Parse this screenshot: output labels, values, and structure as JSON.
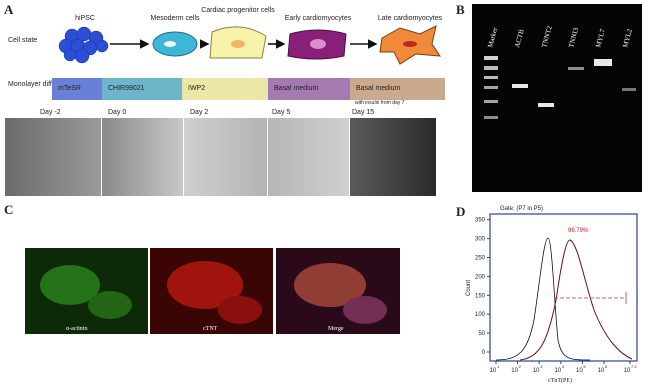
{
  "panel_a": {
    "label": "A",
    "row_cell_state": "Cell state",
    "row_differentiation": "Monolayer differentiation",
    "stages": [
      "hiPSC",
      "Mesoderm cells",
      "Cardiac progenitor cells",
      "Early cardiomyocytes",
      "Late cardiomyocytes"
    ],
    "media": [
      "mTeSR",
      "CHIR99021",
      "IWP2",
      "Basal medium",
      "Basal medium"
    ],
    "media_note": "with insulin from day 7",
    "days": [
      "Day -2",
      "Day 0",
      "Day 2",
      "Day 5",
      "Day 15"
    ]
  },
  "panel_b": {
    "label": "B",
    "lanes": [
      "Marker",
      "ACTB",
      "TNNT2",
      "TNNI3",
      "MYL7",
      "MYL2"
    ]
  },
  "panel_c": {
    "label": "C",
    "captions": [
      "α-actinin",
      "cTNT",
      "Merge"
    ]
  },
  "panel_d": {
    "label": "D",
    "gate": "Gate: (P7 in P5)",
    "percent": "96.79%",
    "y_label": "Count",
    "x_label": "cTnT(PE)",
    "yticks": [
      "0",
      "50",
      "100",
      "150",
      "200",
      "250",
      "300",
      "350"
    ],
    "xticks": [
      {
        "base": "10",
        "exp": "1"
      },
      {
        "base": "10",
        "exp": "2"
      },
      {
        "base": "10",
        "exp": "3"
      },
      {
        "base": "10",
        "exp": "4"
      },
      {
        "base": "10",
        "exp": "5"
      },
      {
        "base": "10",
        "exp": "6"
      },
      {
        "base": "10",
        "exp": "7.2"
      }
    ]
  }
}
